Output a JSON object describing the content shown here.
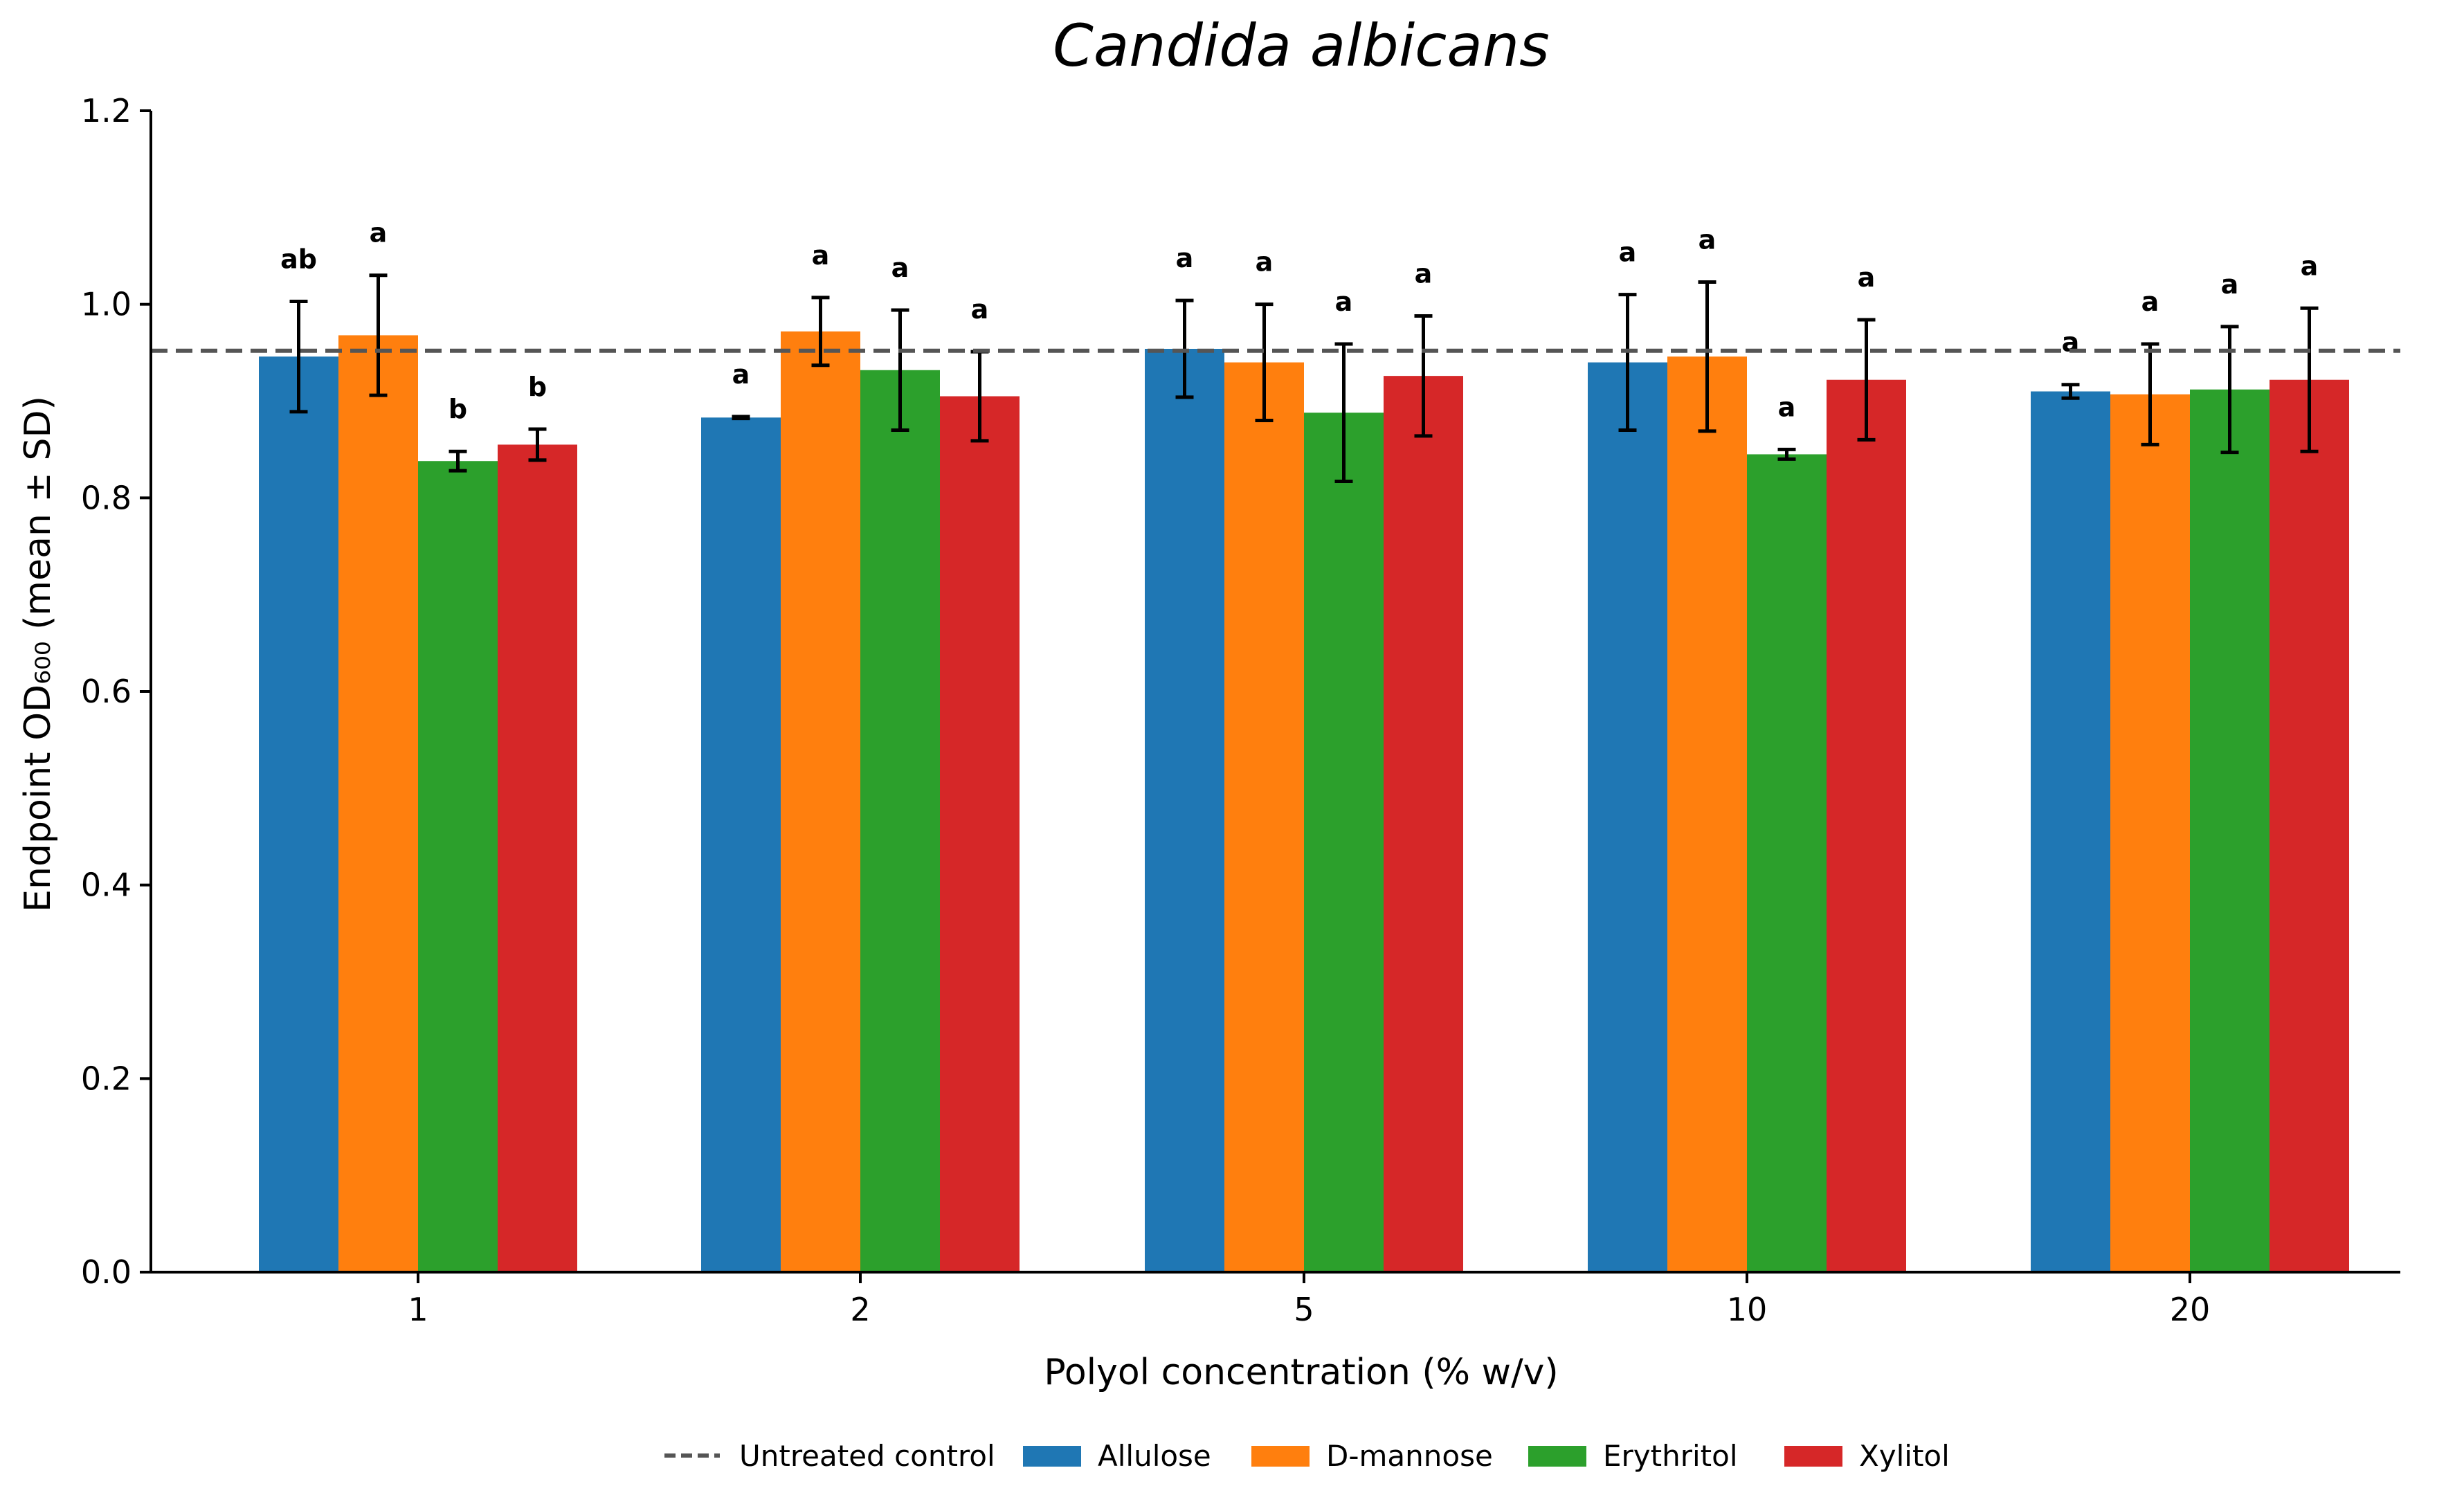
{
  "chart_data": {
    "type": "bar",
    "title": "Candida albicans",
    "xlabel": "Polyol concentration (% w/v)",
    "ylabel": "Endpoint OD₆₀₀ (mean ± SD)",
    "ylim": [
      0,
      1.2
    ],
    "yticks": [
      "0.0",
      "0.2",
      "0.4",
      "0.6",
      "0.8",
      "1.0",
      "1.2"
    ],
    "categories": [
      "1",
      "2",
      "5",
      "10",
      "20"
    ],
    "series": [
      {
        "name": "Allulose",
        "color": "#1f77b4",
        "values": [
          0.946,
          0.883,
          0.954,
          0.94,
          0.91
        ],
        "errors": [
          0.057,
          0.001,
          0.05,
          0.07,
          0.007
        ],
        "labels": [
          "ab",
          "a",
          "a",
          "a",
          "a"
        ]
      },
      {
        "name": "D-mannose",
        "color": "#ff7f0e",
        "values": [
          0.968,
          0.972,
          0.94,
          0.946,
          0.907
        ],
        "errors": [
          0.062,
          0.035,
          0.06,
          0.077,
          0.052
        ],
        "labels": [
          "a",
          "a",
          "a",
          "a",
          "a"
        ]
      },
      {
        "name": "Erythritol",
        "color": "#2ca02c",
        "values": [
          0.838,
          0.932,
          0.888,
          0.845,
          0.912
        ],
        "errors": [
          0.01,
          0.062,
          0.071,
          0.005,
          0.065
        ],
        "labels": [
          "b",
          "a",
          "a",
          "a",
          "a"
        ]
      },
      {
        "name": "Xylitol",
        "color": "#d62728",
        "values": [
          0.855,
          0.905,
          0.926,
          0.922,
          0.922
        ],
        "errors": [
          0.016,
          0.046,
          0.062,
          0.062,
          0.074
        ],
        "labels": [
          "b",
          "a",
          "a",
          "a",
          "a"
        ]
      }
    ],
    "reference_line": {
      "name": "Untreated control",
      "value": 0.952,
      "color": "#555555",
      "style": "dashed"
    },
    "legend_position": "bottom-center",
    "grid": false
  }
}
